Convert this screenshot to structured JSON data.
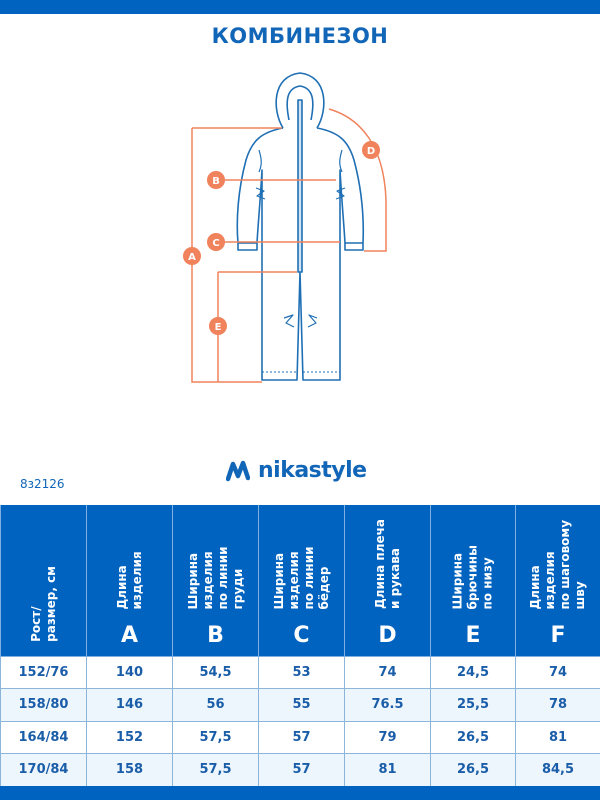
{
  "title": "КОМБИНЕЗОН",
  "diagram": {
    "labels": [
      "A",
      "B",
      "C",
      "D",
      "E"
    ],
    "colors": {
      "measure": "#f0825c",
      "garment": "#1f6fb4"
    }
  },
  "brand": {
    "name": "nikastyle",
    "color": "#1266b8"
  },
  "article": "8з2126",
  "table": {
    "header_color": "#0063c0",
    "columns": [
      {
        "label": "Рост/\nразмер, см",
        "letter": ""
      },
      {
        "label": "Длина изделия",
        "letter": "A"
      },
      {
        "label": "Ширина изделия\nпо линии груди",
        "letter": "B"
      },
      {
        "label": "Ширина изделия\nпо линии бёдер",
        "letter": "C"
      },
      {
        "label": "Длина плеча\nи рукава",
        "letter": "D"
      },
      {
        "label": "Ширина брючины\nпо низу",
        "letter": "E"
      },
      {
        "label": "Длина изделия\nпо шаговому шву",
        "letter": "F"
      }
    ],
    "rows": [
      [
        "152/76",
        "140",
        "54,5",
        "53",
        "74",
        "24,5",
        "74"
      ],
      [
        "158/80",
        "146",
        "56",
        "55",
        "76.5",
        "25,5",
        "78"
      ],
      [
        "164/84",
        "152",
        "57,5",
        "57",
        "79",
        "26,5",
        "81"
      ],
      [
        "170/84",
        "158",
        "57,5",
        "57",
        "81",
        "26,5",
        "84,5"
      ]
    ]
  }
}
